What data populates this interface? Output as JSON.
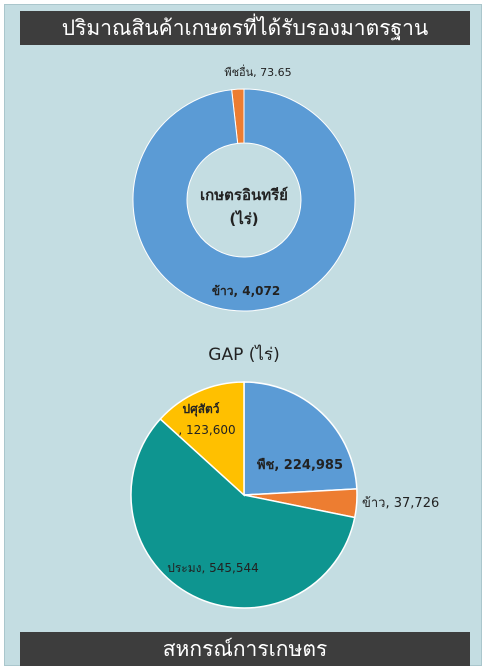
{
  "header": {
    "title": "ปริมาณสินค้าเกษตรที่ได้รับรองมาตรฐาน"
  },
  "footer": {
    "title": "สหกรณ์การเกษตร"
  },
  "colors": {
    "panel_bg": "#c4dde2",
    "blue": "#5b9bd5",
    "orange": "#ed7d31",
    "teal": "#0e9590",
    "yellow": "#ffc000"
  },
  "chart_data": [
    {
      "type": "pie",
      "variant": "donut",
      "center_label": [
        "เกษตรอินทรีย์",
        "(ไร่)"
      ],
      "slices": [
        {
          "name": "พืชอื่น",
          "label": "พืชอื่น, 73.65",
          "value": 73.65,
          "color": "#ed7d31"
        },
        {
          "name": "ข้าว",
          "label": "ข้าว, 4,072",
          "value": 4072,
          "color": "#5b9bd5"
        }
      ]
    },
    {
      "type": "pie",
      "title": "GAP (ไร่)",
      "slices": [
        {
          "name": "พืช",
          "label": "พืช, 224,985",
          "value": 224985,
          "color": "#5b9bd5"
        },
        {
          "name": "ข้าว",
          "label": "ข้าว, 37,726",
          "value": 37726,
          "color": "#ed7d31"
        },
        {
          "name": "ประมง",
          "label": "ประมง, 545,544",
          "value": 545544,
          "color": "#0e9590"
        },
        {
          "name": "ปศุสัตว์",
          "label_lines": [
            "ปศุสัตว์",
            ", 123,600"
          ],
          "value": 123600,
          "color": "#ffc000"
        }
      ]
    }
  ]
}
